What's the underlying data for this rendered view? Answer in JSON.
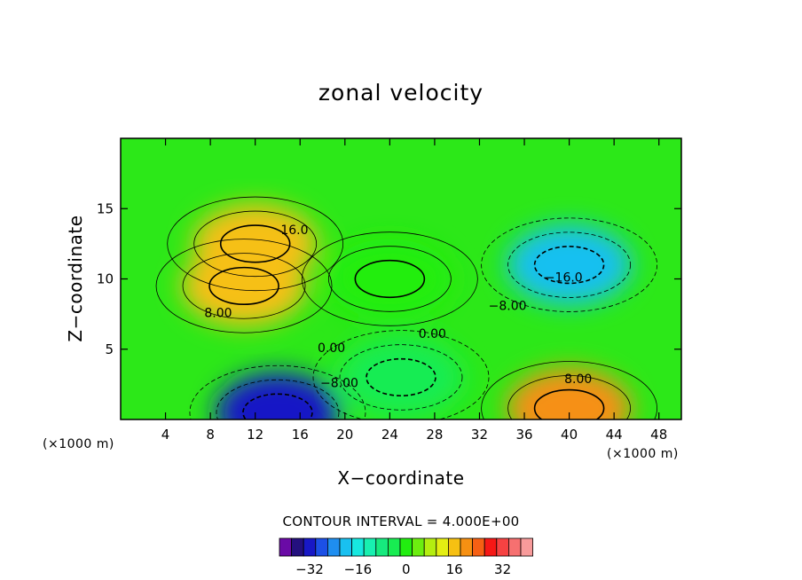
{
  "chart_data": {
    "type": "heatmap",
    "title": "zonal velocity",
    "xlabel": "X−coordinate",
    "ylabel": "Z−coordinate",
    "x_unit": "(×1000 m)",
    "x_unit_right": "(×1000 m)",
    "xlim": [
      0,
      50
    ],
    "ylim": [
      0,
      20
    ],
    "x_ticks": [
      4,
      8,
      12,
      16,
      20,
      24,
      28,
      32,
      36,
      40,
      44,
      48
    ],
    "x_tick_labels": [
      "4",
      "8",
      "12",
      "16",
      "20",
      "24",
      "28",
      "32",
      "36",
      "40",
      "44",
      "48"
    ],
    "y_ticks": [
      5,
      10,
      15
    ],
    "y_tick_labels": [
      "5",
      "10",
      "15"
    ],
    "contour_interval_text": "CONTOUR INTERVAL = 4.000E+00",
    "colorbar": {
      "levels": [
        -40,
        -36,
        -32,
        -28,
        -24,
        -20,
        -16,
        -12,
        -8,
        -4,
        0,
        4,
        8,
        12,
        16,
        20,
        24,
        28,
        32,
        36,
        40
      ],
      "colors": [
        "#6a0aa6",
        "#24107e",
        "#1818c6",
        "#1c50e6",
        "#1f8ef0",
        "#19c0f0",
        "#17e8e0",
        "#18f0b0",
        "#16ea7e",
        "#18ec52",
        "#22ee10",
        "#6cee10",
        "#b4ee10",
        "#e4ee12",
        "#f6c012",
        "#f69012",
        "#f66014",
        "#f61816",
        "#f64242",
        "#f67070",
        "#f89b9b"
      ],
      "ticks": [
        -32,
        -16,
        0,
        16,
        32
      ],
      "tick_labels": [
        "−32",
        "−16",
        "0",
        "16",
        "32"
      ]
    },
    "features": [
      {
        "x": 14,
        "z": 0.5,
        "value": -30
      },
      {
        "x": 12,
        "z": 12.5,
        "value": 18
      },
      {
        "x": 11,
        "z": 9.5,
        "value": 18
      },
      {
        "x": 40,
        "z": 11,
        "value": -20
      },
      {
        "x": 40,
        "z": 0.8,
        "value": 22
      },
      {
        "x": 24,
        "z": 10,
        "value": 2
      },
      {
        "x": 25,
        "z": 3,
        "value": -4
      }
    ],
    "contour_labels": [
      {
        "text": "16.0",
        "x": 15.5,
        "z": 13.2
      },
      {
        "text": "8.00",
        "x": 8.7,
        "z": 7.3
      },
      {
        "text": "0.00",
        "x": 18.8,
        "z": 4.8
      },
      {
        "text": "−8.00",
        "x": 19.5,
        "z": 2.3
      },
      {
        "text": "0.00",
        "x": 27.8,
        "z": 5.8
      },
      {
        "text": "−8.00",
        "x": 34.5,
        "z": 7.8
      },
      {
        "text": "−16.0",
        "x": 39.5,
        "z": 9.8
      },
      {
        "text": "8.00",
        "x": 40.8,
        "z": 2.6
      }
    ]
  }
}
